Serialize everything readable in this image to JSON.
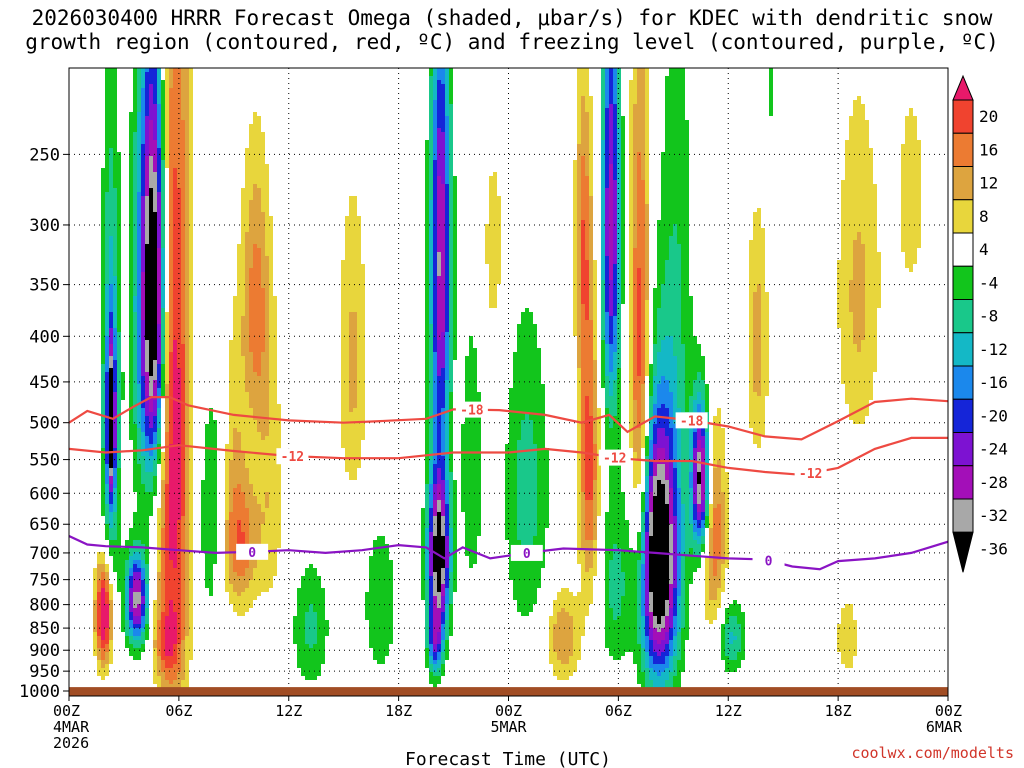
{
  "header": {
    "title_line1": "2026030400 HRRR Forecast Omega (shaded, μbar/s) for KDEC with dendritic snow",
    "title_line2": "growth region (contoured, red, ºC) and freezing level (contoured, purple, ºC)"
  },
  "footer": {
    "credit": "coolwx.com/modelts"
  },
  "chart_data": {
    "type": "heatmap",
    "title": "2026030400 HRRR Forecast Omega (shaded, μbar/s) for KDEC with dendritic snow growth region (contoured, red, ºC) and freezing level (contoured, purple, ºC)",
    "xlabel": "Forecast Time (UTC)",
    "ylabel": "",
    "x_range_hours": [
      0,
      48
    ],
    "x_ticks": [
      {
        "hour": 0,
        "label": "00Z",
        "sub": [
          "4MAR",
          "2026"
        ]
      },
      {
        "hour": 6,
        "label": "06Z",
        "sub": []
      },
      {
        "hour": 12,
        "label": "12Z",
        "sub": []
      },
      {
        "hour": 18,
        "label": "18Z",
        "sub": []
      },
      {
        "hour": 24,
        "label": "00Z",
        "sub": [
          "5MAR"
        ]
      },
      {
        "hour": 30,
        "label": "06Z",
        "sub": []
      },
      {
        "hour": 36,
        "label": "12Z",
        "sub": []
      },
      {
        "hour": 42,
        "label": "18Z",
        "sub": []
      },
      {
        "hour": 48,
        "label": "00Z",
        "sub": [
          "6MAR"
        ]
      }
    ],
    "y_ticks": [
      "250",
      "300",
      "350",
      "400",
      "450",
      "500",
      "550",
      "600",
      "650",
      "700",
      "750",
      "800",
      "850",
      "900",
      "950",
      "1000"
    ],
    "y_range_hpa": [
      200,
      1013
    ],
    "log_pressure_axis": true,
    "ground_level_hpa": 990,
    "colorbar": {
      "labels": [
        "20",
        "16",
        "12",
        "8",
        "4",
        "-4",
        "-8",
        "-12",
        "-16",
        "-20",
        "-24",
        "-28",
        "-32",
        "-36"
      ],
      "bins": [
        {
          "min": 20,
          "color": "#e8196a"
        },
        {
          "min": 16,
          "color": "#f0432f"
        },
        {
          "min": 12,
          "color": "#ec7b32"
        },
        {
          "min": 8,
          "color": "#dda43f"
        },
        {
          "min": 4,
          "color": "#e8d63c"
        },
        {
          "min": -4,
          "color": "#ffffff"
        },
        {
          "min": -8,
          "color": "#12c51c"
        },
        {
          "min": -12,
          "color": "#19c88a"
        },
        {
          "min": -16,
          "color": "#14b8c6"
        },
        {
          "min": -20,
          "color": "#1b88ec"
        },
        {
          "min": -24,
          "color": "#1525d8"
        },
        {
          "min": -28,
          "color": "#7d12d2"
        },
        {
          "min": -32,
          "color": "#a30fb8"
        },
        {
          "min": -36,
          "color": "#a8a8a8"
        },
        {
          "min": -999,
          "color": "#000000"
        }
      ]
    },
    "omega_features": [
      {
        "t": 1.9,
        "p": 820,
        "dt": 0.45,
        "dp": 110,
        "v": 28
      },
      {
        "t": 2.3,
        "p": 480,
        "dt": 0.5,
        "dp": 260,
        "v": -18
      },
      {
        "t": 2.3,
        "p": 500,
        "dt": 0.2,
        "dp": 90,
        "v": -33
      },
      {
        "t": 3.7,
        "p": 790,
        "dt": 0.6,
        "dp": 90,
        "v": -34
      },
      {
        "t": 4.6,
        "p": 360,
        "dt": 0.7,
        "dp": 200,
        "v": -48
      },
      {
        "t": 5.7,
        "p": 520,
        "dt": 0.9,
        "dp": 500,
        "v": 24
      },
      {
        "t": 5.3,
        "p": 880,
        "dt": 0.7,
        "dp": 80,
        "v": 10
      },
      {
        "t": 3.7,
        "p": 380,
        "dt": 0.5,
        "dp": 220,
        "v": -6
      },
      {
        "t": 9.3,
        "p": 680,
        "dt": 1.0,
        "dp": 120,
        "v": 16
      },
      {
        "t": 10.2,
        "p": 370,
        "dt": 0.8,
        "dp": 130,
        "v": 14
      },
      {
        "t": 9.0,
        "p": 500,
        "dt": 0.6,
        "dp": 140,
        "v": 6
      },
      {
        "t": 7.8,
        "p": 640,
        "dt": 0.8,
        "dp": 200,
        "v": -8
      },
      {
        "t": 11.0,
        "p": 600,
        "dt": 0.8,
        "dp": 200,
        "v": 7
      },
      {
        "t": 13.2,
        "p": 850,
        "dt": 1.0,
        "dp": 140,
        "v": -9
      },
      {
        "t": 15.5,
        "p": 430,
        "dt": 0.8,
        "dp": 170,
        "v": 9
      },
      {
        "t": 17.0,
        "p": 800,
        "dt": 0.9,
        "dp": 160,
        "v": -8
      },
      {
        "t": 20.2,
        "p": 700,
        "dt": 0.6,
        "dp": 150,
        "v": -42
      },
      {
        "t": 20.0,
        "p": 880,
        "dt": 0.4,
        "dp": 80,
        "v": -20
      },
      {
        "t": 20.3,
        "p": 330,
        "dt": 0.55,
        "dp": 180,
        "v": -33
      },
      {
        "t": 22.0,
        "p": 560,
        "dt": 0.6,
        "dp": 200,
        "v": -8
      },
      {
        "t": 23.2,
        "p": 320,
        "dt": 0.7,
        "dp": 100,
        "v": 6
      },
      {
        "t": 25.0,
        "p": 600,
        "dt": 1.2,
        "dp": 240,
        "v": -10
      },
      {
        "t": 27.0,
        "p": 870,
        "dt": 0.9,
        "dp": 100,
        "v": 12
      },
      {
        "t": 28.1,
        "p": 310,
        "dt": 0.45,
        "dp": 120,
        "v": 14
      },
      {
        "t": 28.4,
        "p": 560,
        "dt": 0.55,
        "dp": 200,
        "v": 18
      },
      {
        "t": 29.6,
        "p": 300,
        "dt": 0.5,
        "dp": 170,
        "v": -30
      },
      {
        "t": 29.8,
        "p": 760,
        "dt": 0.8,
        "dp": 180,
        "v": -9
      },
      {
        "t": 31.2,
        "p": 470,
        "dt": 0.55,
        "dp": 300,
        "v": 22
      },
      {
        "t": 32.2,
        "p": 710,
        "dt": 1.1,
        "dp": 240,
        "v": -48
      },
      {
        "t": 34.5,
        "p": 580,
        "dt": 0.5,
        "dp": 110,
        "v": -40
      },
      {
        "t": 35.2,
        "p": 660,
        "dt": 0.7,
        "dp": 170,
        "v": 16
      },
      {
        "t": 33.2,
        "p": 340,
        "dt": 0.9,
        "dp": 240,
        "v": -7
      },
      {
        "t": 36.2,
        "p": 870,
        "dt": 0.7,
        "dp": 80,
        "v": -13
      },
      {
        "t": 37.6,
        "p": 410,
        "dt": 0.6,
        "dp": 130,
        "v": 10
      },
      {
        "t": 43.1,
        "p": 360,
        "dt": 1.2,
        "dp": 160,
        "v": 9
      },
      {
        "t": 46.0,
        "p": 280,
        "dt": 1.2,
        "dp": 120,
        "v": 5
      },
      {
        "t": 42.5,
        "p": 870,
        "dt": 0.6,
        "dp": 90,
        "v": 8
      },
      {
        "t": 38.3,
        "p": 210,
        "dt": 0.3,
        "dp": 30,
        "v": -6
      }
    ],
    "contours": [
      {
        "label": "-18",
        "color": "#ee4a42",
        "x": [
          0,
          1,
          2.4,
          3.5,
          4.5,
          5.5,
          6.5,
          9,
          12,
          15,
          17,
          19.5,
          21,
          23.5,
          26,
          28,
          29.5,
          30.5,
          32,
          34,
          36,
          38,
          40,
          42,
          44,
          46,
          48
        ],
        "y": [
          500,
          485,
          495,
          480,
          468,
          468,
          478,
          490,
          497,
          500,
          498,
          495,
          483,
          484,
          490,
          500,
          490,
          512,
          492,
          497,
          505,
          518,
          522,
          498,
          474,
          470,
          473
        ],
        "label_x": [
          22.0,
          34.0
        ]
      },
      {
        "label": "-12",
        "color": "#ee4a42",
        "x": [
          0,
          2,
          4,
          6,
          9,
          12,
          15,
          18,
          21,
          24,
          26,
          28,
          30,
          32,
          34,
          36,
          38,
          40,
          42,
          44,
          46,
          48
        ],
        "y": [
          535,
          540,
          537,
          530,
          538,
          545,
          548,
          548,
          540,
          540,
          535,
          540,
          548,
          552,
          552,
          562,
          568,
          572,
          562,
          535,
          520,
          520
        ],
        "label_x": [
          12.2,
          29.8,
          40.5
        ]
      },
      {
        "label": "0",
        "color": "#8a14c4",
        "x": [
          0,
          1,
          2,
          4,
          6,
          8,
          10,
          12,
          14,
          16,
          18,
          19.5,
          20.5,
          21.5,
          23,
          25,
          27,
          30,
          32,
          34,
          36,
          38,
          39.5,
          41,
          42,
          44,
          46,
          48
        ],
        "y": [
          670,
          685,
          688,
          690,
          695,
          700,
          698,
          695,
          700,
          695,
          686,
          690,
          710,
          690,
          710,
          700,
          692,
          695,
          700,
          705,
          710,
          712,
          725,
          730,
          715,
          710,
          700,
          680
        ],
        "label_x": [
          10.0,
          25.0,
          38.2
        ]
      }
    ]
  }
}
